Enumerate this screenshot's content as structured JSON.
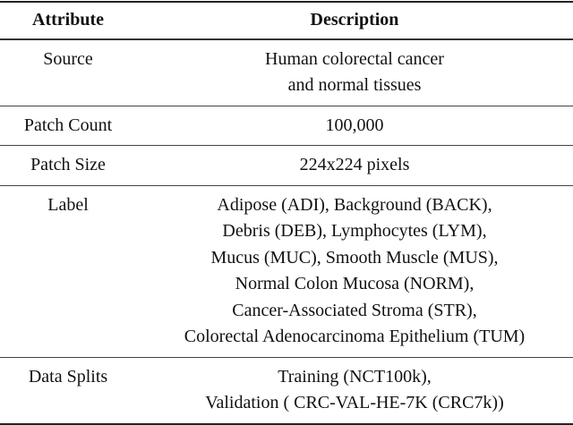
{
  "table": {
    "headers": [
      "Attribute",
      "Description"
    ],
    "rows": [
      {
        "attribute": "Source",
        "description": [
          "Human colorectal cancer",
          "and normal tissues"
        ]
      },
      {
        "attribute": "Patch Count",
        "description": [
          "100,000"
        ]
      },
      {
        "attribute": "Patch Size",
        "description": [
          "224x224 pixels"
        ]
      },
      {
        "attribute": "Label",
        "description": [
          "Adipose (ADI), Background (BACK),",
          "Debris (DEB), Lymphocytes (LYM),",
          "Mucus (MUC), Smooth Muscle (MUS),",
          "Normal Colon Mucosa (NORM),",
          "Cancer-Associated Stroma (STR),",
          "Colorectal Adenocarcinoma Epithelium (TUM)"
        ]
      },
      {
        "attribute": "Data Splits",
        "description": [
          "Training (NCT100k),",
          "Validation ( CRC-VAL-HE-7K (CRC7k))"
        ]
      }
    ]
  }
}
